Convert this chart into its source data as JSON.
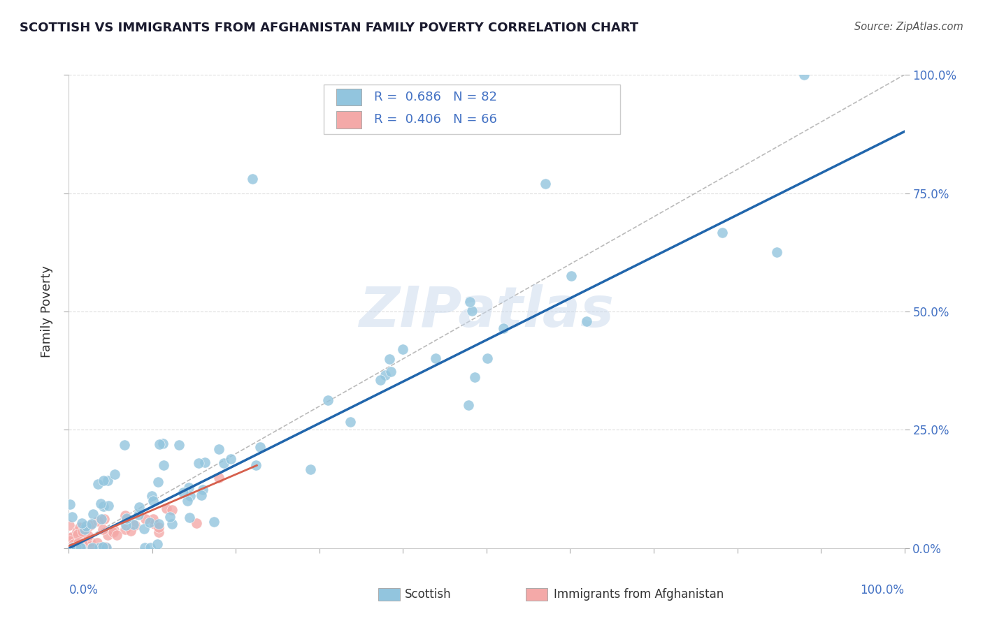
{
  "title": "SCOTTISH VS IMMIGRANTS FROM AFGHANISTAN FAMILY POVERTY CORRELATION CHART",
  "source": "Source: ZipAtlas.com",
  "ylabel": "Family Poverty",
  "blue_color": "#92C5DE",
  "pink_color": "#F4A9A8",
  "trendline_blue_color": "#2166AC",
  "trendline_pink_color": "#D6604D",
  "diagonal_color": "#BBBBBB",
  "watermark": "ZIPatlas",
  "background_color": "#FFFFFF",
  "legend_r_blue": "R = 0.686",
  "legend_n_blue": "N = 82",
  "legend_r_pink": "R = 0.406",
  "legend_n_pink": "N = 66",
  "legend_label_blue": "Scottish",
  "legend_label_pink": "Immigrants from Afghanistan"
}
